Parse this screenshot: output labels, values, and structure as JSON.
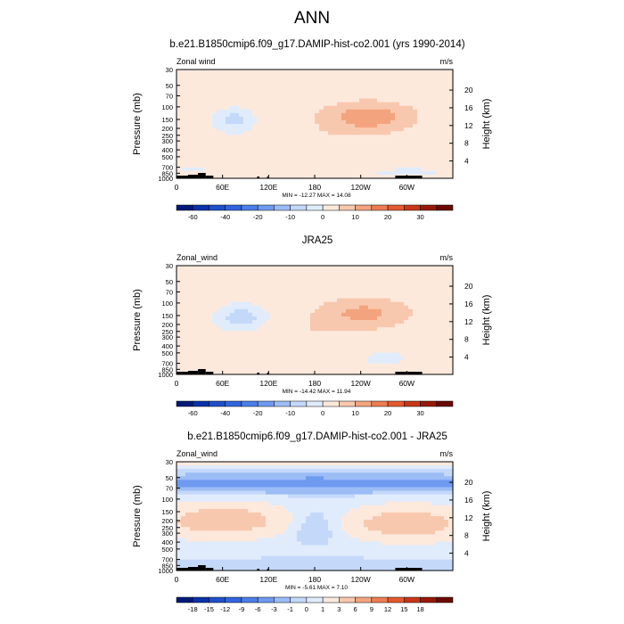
{
  "page_title": "ANN",
  "chart_data": [
    {
      "type": "heatmap",
      "title": "b.e21.B1850cmip6.f09_g17.DAMIP-hist-co2.001 (yrs 1990-2014)",
      "variable_label": "Zonal wind",
      "units_label": "m/s",
      "ylabel": "Pressure (mb)",
      "ylabel_right": "Height (km)",
      "x_ticks": [
        "0",
        "60E",
        "120E",
        "180",
        "120W",
        "60W"
      ],
      "x_tick_values": [
        0,
        60,
        120,
        180,
        240,
        300
      ],
      "xlim": [
        0,
        360
      ],
      "y_ticks": [
        "30",
        "50",
        "70",
        "100",
        "150",
        "200",
        "250",
        "300",
        "400",
        "500",
        "700",
        "850",
        "1000"
      ],
      "y_tick_values": [
        30,
        50,
        70,
        100,
        150,
        200,
        250,
        300,
        400,
        500,
        700,
        850,
        1000
      ],
      "ylim": [
        1000,
        30
      ],
      "y_scale": "log",
      "right_ticks": [
        "4",
        "8",
        "12",
        "16",
        "20"
      ],
      "right_tick_values": [
        4,
        8,
        12,
        16,
        20
      ],
      "stats_label": "MIN = -12.27  MAX = 14.08",
      "min": -12.27,
      "max": 14.08,
      "colorbar_levels": [
        -70,
        -60,
        -50,
        -40,
        -30,
        -20,
        -15,
        -10,
        -5,
        0,
        5,
        10,
        15,
        20,
        25,
        30,
        35
      ],
      "colorbar_labels": [
        "-60",
        "-40",
        "-20",
        "-10",
        "0",
        "10",
        "20",
        "30"
      ],
      "colorbar_label_values": [
        -60,
        -40,
        -20,
        -10,
        0,
        10,
        20,
        30
      ],
      "colors": [
        "#001a7a",
        "#0a32a8",
        "#1e50c8",
        "#3264dc",
        "#4a7ee8",
        "#6e9af0",
        "#9cbcf6",
        "#c4d8fa",
        "#e0ecfc",
        "#fde9dc",
        "#f8c8ae",
        "#f3a47e",
        "#ec7c52",
        "#e45a2e",
        "#c83814",
        "#961a06",
        "#6a0a00"
      ],
      "features": [
        {
          "x": 75,
          "p": 150,
          "sx": 22,
          "sy": 0.35,
          "a": -9
        },
        {
          "x": 250,
          "p": 140,
          "sx": 60,
          "sy": 0.5,
          "a": 12
        },
        {
          "x": 175,
          "p": 350,
          "sx": 45,
          "sy": 0.6,
          "a": 3
        },
        {
          "x": 60,
          "p": 70,
          "sx": 90,
          "sy": 0.45,
          "a": 2
        },
        {
          "x": 120,
          "p": 700,
          "sx": 40,
          "sy": 0.25,
          "a": 2
        },
        {
          "x": 300,
          "p": 820,
          "sx": 70,
          "sy": 0.2,
          "a": -2
        },
        {
          "x": 20,
          "p": 750,
          "sx": 25,
          "sy": 0.2,
          "a": -2
        }
      ],
      "background_value": 1.5
    },
    {
      "type": "heatmap",
      "title": "JRA25",
      "variable_label": "Zonal_wind",
      "units_label": "m/s",
      "ylabel": "Pressure (mb)",
      "ylabel_right": "Height (km)",
      "x_ticks": [
        "0",
        "60E",
        "120E",
        "180",
        "120W",
        "60W"
      ],
      "x_tick_values": [
        0,
        60,
        120,
        180,
        240,
        300
      ],
      "xlim": [
        0,
        360
      ],
      "y_ticks": [
        "30",
        "50",
        "70",
        "100",
        "150",
        "200",
        "250",
        "300",
        "400",
        "500",
        "700",
        "850",
        "1000"
      ],
      "y_tick_values": [
        30,
        50,
        70,
        100,
        150,
        200,
        250,
        300,
        400,
        500,
        700,
        850,
        1000
      ],
      "ylim": [
        1000,
        30
      ],
      "y_scale": "log",
      "right_ticks": [
        "4",
        "8",
        "12",
        "16",
        "20"
      ],
      "right_tick_values": [
        4,
        8,
        12,
        16,
        20
      ],
      "stats_label": "MIN = -14.42  MAX = 11.94",
      "min": -14.42,
      "max": 11.94,
      "colorbar_levels": [
        -70,
        -60,
        -50,
        -40,
        -30,
        -20,
        -15,
        -10,
        -5,
        0,
        5,
        10,
        15,
        20,
        25,
        30,
        35
      ],
      "colorbar_labels": [
        "-60",
        "-40",
        "-20",
        "-10",
        "0",
        "10",
        "20",
        "30"
      ],
      "colorbar_label_values": [
        -60,
        -40,
        -20,
        -10,
        0,
        10,
        20,
        30
      ],
      "colors": [
        "#001a7a",
        "#0a32a8",
        "#1e50c8",
        "#3264dc",
        "#4a7ee8",
        "#6e9af0",
        "#9cbcf6",
        "#c4d8fa",
        "#e0ecfc",
        "#fde9dc",
        "#f8c8ae",
        "#f3a47e",
        "#ec7c52",
        "#e45a2e",
        "#c83814",
        "#961a06",
        "#6a0a00"
      ],
      "features": [
        {
          "x": 85,
          "p": 160,
          "sx": 28,
          "sy": 0.35,
          "a": -10
        },
        {
          "x": 245,
          "p": 140,
          "sx": 60,
          "sy": 0.5,
          "a": 10
        },
        {
          "x": 170,
          "p": 300,
          "sx": 50,
          "sy": 0.7,
          "a": 3
        },
        {
          "x": 90,
          "p": 500,
          "sx": 60,
          "sy": 0.3,
          "a": 2
        },
        {
          "x": 270,
          "p": 600,
          "sx": 50,
          "sy": 0.35,
          "a": -2
        },
        {
          "x": 40,
          "p": 50,
          "sx": 70,
          "sy": 0.25,
          "a": 2
        }
      ],
      "background_value": 1.5
    },
    {
      "type": "heatmap",
      "title": "b.e21.B1850cmip6.f09_g17.DAMIP-hist-co2.001 - JRA25",
      "variable_label": "Zonal_wind",
      "units_label": "m/s",
      "ylabel": "Pressure (mb)",
      "ylabel_right": "Height (km)",
      "x_ticks": [
        "0",
        "60E",
        "120E",
        "180",
        "120W",
        "60W"
      ],
      "x_tick_values": [
        0,
        60,
        120,
        180,
        240,
        300
      ],
      "xlim": [
        0,
        360
      ],
      "y_ticks": [
        "30",
        "50",
        "70",
        "100",
        "150",
        "200",
        "250",
        "300",
        "400",
        "500",
        "700",
        "850",
        "1000"
      ],
      "y_tick_values": [
        30,
        50,
        70,
        100,
        150,
        200,
        250,
        300,
        400,
        500,
        700,
        850,
        1000
      ],
      "ylim": [
        1000,
        30
      ],
      "y_scale": "log",
      "right_ticks": [
        "4",
        "8",
        "12",
        "16",
        "20"
      ],
      "right_tick_values": [
        4,
        8,
        12,
        16,
        20
      ],
      "stats_label": "MIN = -5.61  MAX = 7.10",
      "min": -5.61,
      "max": 7.1,
      "colorbar_levels": [
        -20,
        -18,
        -15,
        -12,
        -9,
        -6,
        -3,
        -1,
        0,
        1,
        3,
        6,
        9,
        12,
        15,
        18,
        21
      ],
      "colorbar_labels": [
        "-18",
        "-15",
        "-12",
        "-9",
        "-6",
        "-3",
        "-1",
        "0",
        "1",
        "3",
        "6",
        "9",
        "12",
        "15",
        "18"
      ],
      "colorbar_label_values": [
        -18,
        -15,
        -12,
        -9,
        -6,
        -3,
        -1,
        0,
        1,
        3,
        6,
        9,
        12,
        15,
        18
      ],
      "colors": [
        "#001a7a",
        "#0a32a8",
        "#1e50c8",
        "#3264dc",
        "#4a7ee8",
        "#6e9af0",
        "#9cbcf6",
        "#c4d8fa",
        "#e0ecfc",
        "#fde9dc",
        "#f8c8ae",
        "#f3a47e",
        "#ec7c52",
        "#e45a2e",
        "#c83814",
        "#961a06",
        "#6a0a00"
      ],
      "features": [
        {
          "x": 180,
          "p": 60,
          "sx": 400,
          "sy": 0.28,
          "a": -5
        },
        {
          "x": 60,
          "p": 200,
          "sx": 70,
          "sy": 0.45,
          "a": 5
        },
        {
          "x": 300,
          "p": 220,
          "sx": 65,
          "sy": 0.45,
          "a": 5
        },
        {
          "x": 180,
          "p": 250,
          "sx": 30,
          "sy": 0.6,
          "a": -1.5
        },
        {
          "x": 180,
          "p": 800,
          "sx": 400,
          "sy": 0.18,
          "a": -1.5
        },
        {
          "x": 180,
          "p": 32,
          "sx": 400,
          "sy": 0.1,
          "a": 1.5
        }
      ],
      "background_value": 0.5
    }
  ]
}
